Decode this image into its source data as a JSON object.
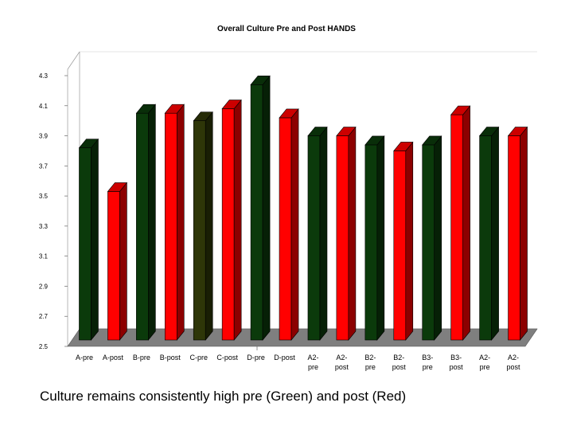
{
  "chart_data": {
    "type": "bar",
    "title": "Overall Culture Pre and Post HANDS",
    "categories": [
      "A-pre",
      "A-post",
      "B-pre",
      "B-post",
      "C-pre",
      "C-post",
      "D-pre",
      "D-post",
      "A2-\npre",
      "A2-\npost",
      "B2-\npre",
      "B2-\npost",
      "B3-\npre",
      "B3-\npost",
      "A2-\npre",
      "A2-\npost"
    ],
    "values": [
      3.82,
      3.53,
      4.05,
      4.05,
      4.0,
      4.08,
      4.24,
      4.02,
      3.9,
      3.9,
      3.84,
      3.8,
      3.84,
      4.04,
      3.9,
      3.9
    ],
    "bar_colors": [
      "#0b3a0b",
      "#ff0000",
      "#0b3a0b",
      "#ff0000",
      "#2e3608",
      "#ff0000",
      "#0b3a0b",
      "#ff0000",
      "#0b3a0b",
      "#ff0000",
      "#0b3a0b",
      "#ff0000",
      "#0b3a0b",
      "#ff0000",
      "#0b3a0b",
      "#ff0000"
    ],
    "ylim": [
      2.5,
      4.3
    ],
    "yticks": [
      "2.5",
      "2.7",
      "2.9",
      "3.1",
      "3.3",
      "3.5",
      "3.7",
      "3.9",
      "4.1",
      "4.3"
    ],
    "ytick_values": [
      2.5,
      2.7,
      2.9,
      3.1,
      3.3,
      3.5,
      3.7,
      3.9,
      4.1,
      4.3
    ],
    "grid": false,
    "floor_color": "#7f7f7f",
    "xlabel": "",
    "ylabel": ""
  },
  "caption": "Culture remains consistently high pre (Green) and post (Red)"
}
